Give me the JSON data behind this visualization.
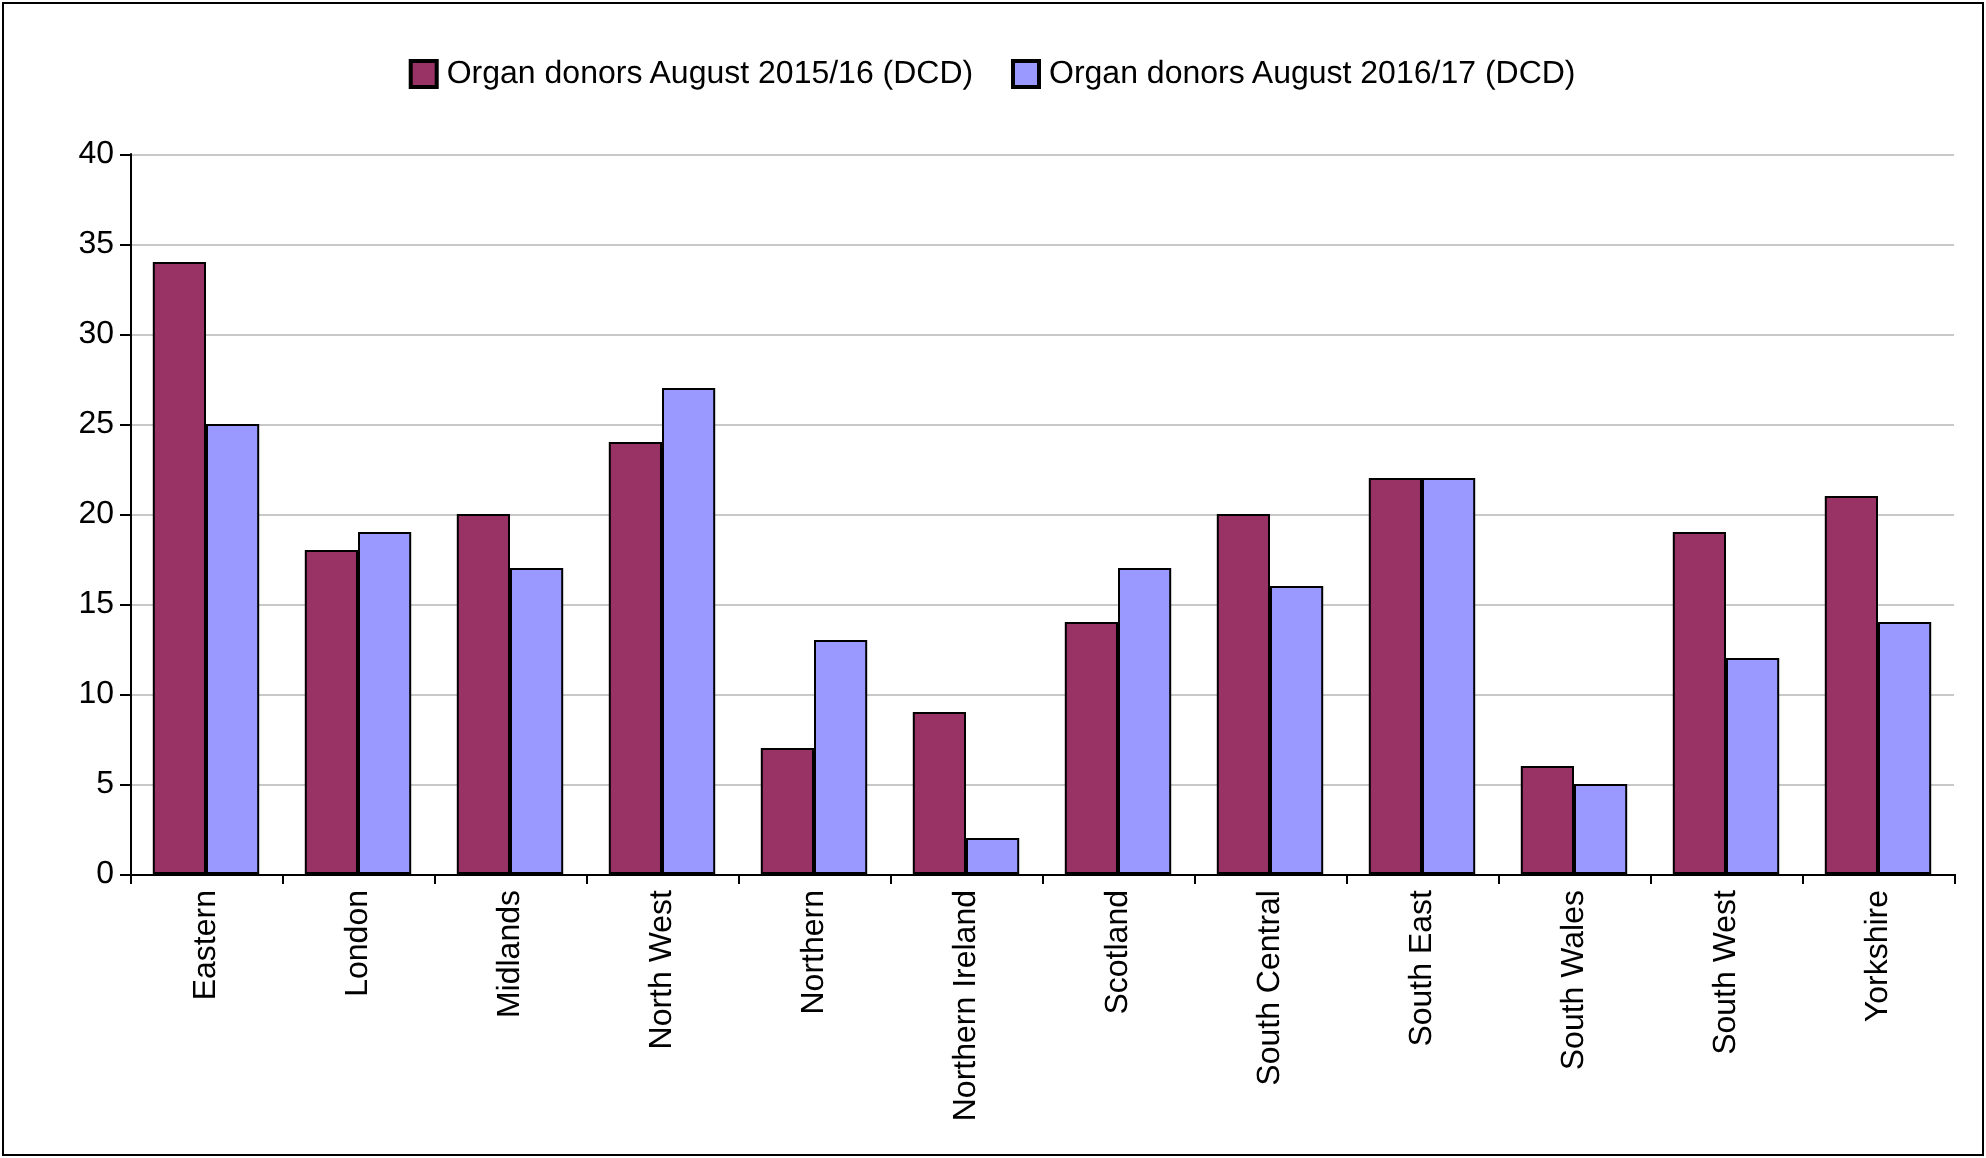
{
  "chart_data": {
    "type": "bar",
    "categories": [
      "Eastern",
      "London",
      "Midlands",
      "North West",
      "Northern",
      "Northern Ireland",
      "Scotland",
      "South Central",
      "South East",
      "South Wales",
      "South West",
      "Yorkshire"
    ],
    "series": [
      {
        "name": "Organ donors August 2015/16 (DCD)",
        "color": "#993366",
        "values": [
          34,
          18,
          20,
          24,
          7,
          9,
          14,
          20,
          22,
          6,
          19,
          21
        ]
      },
      {
        "name": "Organ donors August 2016/17 (DCD)",
        "color": "#9999ff",
        "values": [
          25,
          19,
          17,
          27,
          13,
          2,
          17,
          16,
          22,
          5,
          12,
          14
        ]
      }
    ],
    "ylim": [
      0,
      40
    ],
    "yticks": [
      0,
      5,
      10,
      15,
      20,
      25,
      30,
      35,
      40
    ],
    "grid": "y",
    "legend": "top"
  }
}
